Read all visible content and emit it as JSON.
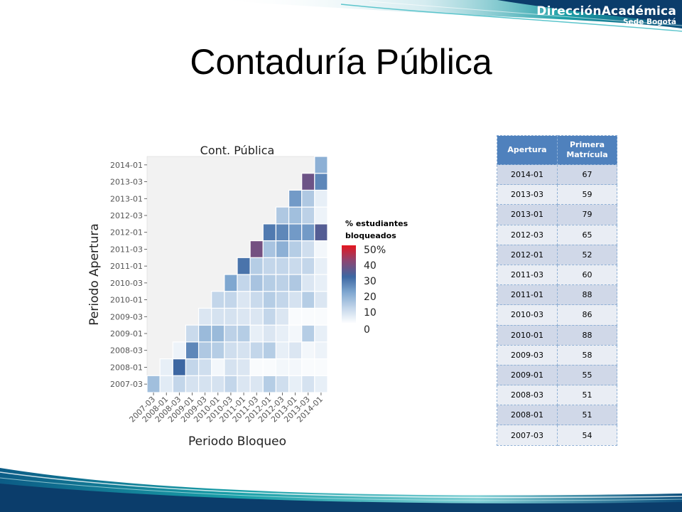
{
  "slide": {
    "title": "Contaduría Pública",
    "brand": {
      "main": "DirecciónAcadémica",
      "sub": "Sede Bogotá"
    }
  },
  "chart_data": {
    "type": "heatmap",
    "title": "Cont. Pública",
    "xlabel": "Periodo Bloqueo",
    "ylabel": "Periodo Apertura",
    "x_categories": [
      "2007-03",
      "2008-01",
      "2008-03",
      "2009-01",
      "2009-03",
      "2010-01",
      "2010-03",
      "2011-01",
      "2011-03",
      "2012-01",
      "2012-03",
      "2013-01",
      "2013-03",
      "2014-01"
    ],
    "y_categories": [
      "2007-03",
      "2008-01",
      "2008-03",
      "2009-01",
      "2009-03",
      "2010-01",
      "2010-03",
      "2011-01",
      "2011-03",
      "2012-01",
      "2012-03",
      "2013-01",
      "2013-03",
      "2014-01"
    ],
    "values": [
      [
        15,
        5,
        10,
        7,
        7,
        7,
        10,
        6,
        6,
        12,
        8,
        4,
        7,
        4
      ],
      [
        null,
        4,
        30,
        10,
        8,
        2,
        7,
        6,
        1,
        1,
        2,
        2,
        1,
        1
      ],
      [
        null,
        null,
        3,
        25,
        13,
        12,
        8,
        7,
        10,
        12,
        4,
        6,
        2,
        3
      ],
      [
        null,
        null,
        null,
        9,
        16,
        16,
        11,
        12,
        4,
        6,
        4,
        2,
        12,
        4
      ],
      [
        null,
        null,
        null,
        null,
        6,
        7,
        7,
        6,
        6,
        10,
        6,
        1,
        1,
        1
      ],
      [
        null,
        null,
        null,
        null,
        null,
        10,
        10,
        6,
        9,
        12,
        10,
        7,
        12,
        6
      ],
      [
        null,
        null,
        null,
        null,
        null,
        null,
        20,
        10,
        14,
        12,
        11,
        13,
        6,
        4
      ],
      [
        null,
        null,
        null,
        null,
        null,
        null,
        null,
        28,
        12,
        10,
        10,
        9,
        10,
        4
      ],
      [
        null,
        null,
        null,
        null,
        null,
        null,
        null,
        null,
        37,
        14,
        18,
        12,
        8,
        2
      ],
      [
        null,
        null,
        null,
        null,
        null,
        null,
        null,
        null,
        null,
        27,
        25,
        22,
        22,
        33
      ],
      [
        null,
        null,
        null,
        null,
        null,
        null,
        null,
        null,
        null,
        null,
        13,
        15,
        11,
        3
      ],
      [
        null,
        null,
        null,
        null,
        null,
        null,
        null,
        null,
        null,
        null,
        null,
        22,
        13,
        4
      ],
      [
        null,
        null,
        null,
        null,
        null,
        null,
        null,
        null,
        null,
        null,
        null,
        null,
        36,
        25
      ],
      [
        null,
        null,
        null,
        null,
        null,
        null,
        null,
        null,
        null,
        null,
        null,
        null,
        null,
        18
      ]
    ],
    "value_range": [
      0,
      50
    ],
    "legend": {
      "title_lines": [
        "% estudiantes",
        "bloqueados"
      ],
      "ticks": [
        "50%",
        "40",
        "30",
        "20",
        "10",
        "0"
      ],
      "placement": "right"
    },
    "grid": true
  },
  "table": {
    "headers": [
      "Apertura",
      "Primera Matrícula"
    ],
    "rows": [
      [
        "2014-01",
        "67"
      ],
      [
        "2013-03",
        "59"
      ],
      [
        "2013-01",
        "79"
      ],
      [
        "2012-03",
        "65"
      ],
      [
        "2012-01",
        "52"
      ],
      [
        "2011-03",
        "60"
      ],
      [
        "2011-01",
        "88"
      ],
      [
        "2010-03",
        "86"
      ],
      [
        "2010-01",
        "88"
      ],
      [
        "2009-03",
        "58"
      ],
      [
        "2009-01",
        "55"
      ],
      [
        "2008-03",
        "51"
      ],
      [
        "2008-01",
        "51"
      ],
      [
        "2007-03",
        "54"
      ]
    ]
  },
  "colors": {
    "header_blue": "#4f81bd",
    "row_odd": "#d0d8e8",
    "row_even": "#e9edf4",
    "band_teal": "#1aa0a8",
    "band_navy": "#0b3d6b"
  }
}
